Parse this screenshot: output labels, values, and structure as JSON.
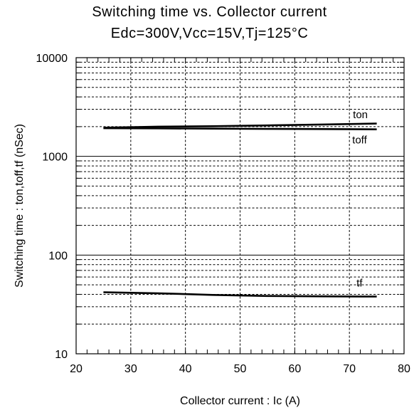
{
  "chart_data": {
    "type": "line",
    "title": "Switching time vs. Collector current",
    "subtitle": "Edc=300V,Vcc=15V,Tj=125°C",
    "xlabel": "Collector current : Ic (A)",
    "ylabel": "Switching time : ton,toff,tf (nSec)",
    "xlim": [
      20,
      80
    ],
    "ylim": [
      10,
      10000
    ],
    "yscale": "log",
    "x_ticks": [
      "20",
      "30",
      "40",
      "50",
      "60",
      "70",
      "80"
    ],
    "y_ticks": [
      "10",
      "100",
      "1000",
      "10000"
    ],
    "grid": true,
    "series": [
      {
        "name": "ton",
        "x": [
          25,
          35,
          45,
          55,
          65,
          75
        ],
        "y": [
          1950,
          2000,
          2020,
          2060,
          2100,
          2150
        ]
      },
      {
        "name": "toff",
        "x": [
          25,
          35,
          45,
          55,
          65,
          75
        ],
        "y": [
          1930,
          1920,
          1910,
          1900,
          1890,
          1880
        ]
      },
      {
        "name": "tf",
        "x": [
          25,
          35,
          45,
          55,
          65,
          75
        ],
        "y": [
          42,
          41,
          39.5,
          38.5,
          38.2,
          38
        ]
      }
    ],
    "colors": {
      "line": "#000000",
      "grid": "#000000",
      "background": "#ffffff"
    }
  }
}
